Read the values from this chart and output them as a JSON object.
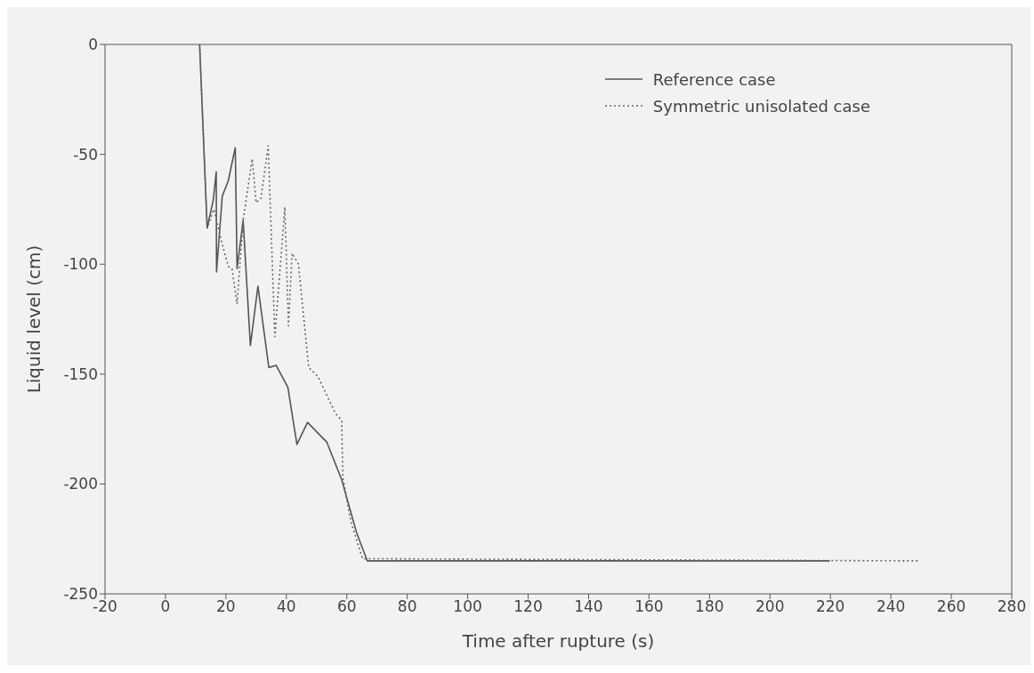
{
  "chart_data": {
    "type": "line",
    "xlabel": "Time after rupture (s)",
    "ylabel": "Liquid level (cm)",
    "xlim": [
      -20,
      280
    ],
    "xticks": [
      -20,
      0,
      20,
      40,
      60,
      80,
      100,
      120,
      140,
      160,
      180,
      200,
      220,
      240,
      260,
      280
    ],
    "ylim": [
      -250,
      0
    ],
    "yticks": [
      -250,
      -200,
      -150,
      -100,
      -50,
      0
    ],
    "grid": false,
    "legend": "top right",
    "marker": "none",
    "series": [
      {
        "name": "Reference case",
        "color": "#555555",
        "line_style": "solid",
        "x": [
          11.3,
          13.8,
          15.8,
          16.8,
          16.9,
          18.8,
          20.8,
          22,
          23.1,
          23.7,
          25.7,
          28.1,
          30.6,
          34.2,
          36.6,
          40.5,
          43.5,
          47,
          53.4,
          58.3,
          63.2,
          66.8,
          219.8
        ],
        "values": [
          0,
          -83.5,
          -71,
          -58,
          -103.5,
          -69,
          -62,
          -54,
          -47,
          -102,
          -80,
          -137,
          -110,
          -147,
          -146,
          -156,
          -182,
          -172,
          -181,
          -198,
          -222,
          -235,
          -235
        ]
      },
      {
        "name": "Symmetric unisolated case",
        "color": "#666666",
        "line_style": "dotted",
        "x": [
          11.3,
          13.8,
          16,
          18.8,
          20.8,
          22,
          23.7,
          25.7,
          28.7,
          30,
          31.6,
          34,
          36.2,
          39.5,
          40.7,
          41.9,
          44,
          47.4,
          50.4,
          56.3,
          58.3,
          58.7,
          61.3,
          65.2,
          249
        ],
        "values": [
          0,
          -83.5,
          -75,
          -91,
          -101,
          -102,
          -118,
          -80,
          -52,
          -72,
          -70,
          -46,
          -133,
          -74,
          -128,
          -95,
          -100,
          -147,
          -151,
          -168,
          -171,
          -197,
          -217,
          -234,
          -235
        ]
      }
    ]
  }
}
